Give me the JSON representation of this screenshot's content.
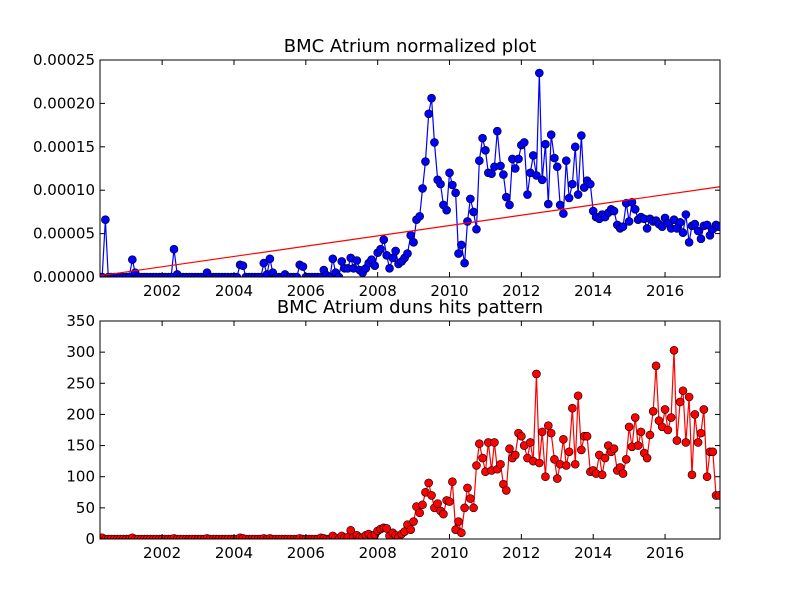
{
  "chart_data": [
    {
      "type": "line",
      "title": "BMC Atrium normalized plot",
      "x": [
        2000.33,
        2000.42,
        2000.5,
        2000.58,
        2000.67,
        2000.75,
        2000.83,
        2000.92,
        2001.0,
        2001.08,
        2001.17,
        2001.25,
        2001.33,
        2001.42,
        2001.5,
        2001.58,
        2001.67,
        2001.75,
        2001.83,
        2001.92,
        2002.0,
        2002.08,
        2002.17,
        2002.25,
        2002.33,
        2002.42,
        2002.5,
        2002.58,
        2002.67,
        2002.75,
        2002.83,
        2002.92,
        2003.0,
        2003.08,
        2003.17,
        2003.25,
        2003.33,
        2003.42,
        2003.5,
        2003.58,
        2003.67,
        2003.75,
        2003.83,
        2003.92,
        2004.0,
        2004.08,
        2004.17,
        2004.25,
        2004.33,
        2004.42,
        2004.5,
        2004.58,
        2004.67,
        2004.75,
        2004.83,
        2004.92,
        2005.0,
        2005.08,
        2005.17,
        2005.25,
        2005.33,
        2005.42,
        2005.5,
        2005.58,
        2005.67,
        2005.75,
        2005.83,
        2005.92,
        2006.0,
        2006.08,
        2006.17,
        2006.25,
        2006.33,
        2006.42,
        2006.5,
        2006.58,
        2006.67,
        2006.75,
        2006.83,
        2006.92,
        2007.0,
        2007.08,
        2007.17,
        2007.25,
        2007.33,
        2007.42,
        2007.5,
        2007.58,
        2007.67,
        2007.75,
        2007.83,
        2007.92,
        2008.0,
        2008.08,
        2008.17,
        2008.25,
        2008.33,
        2008.42,
        2008.5,
        2008.58,
        2008.67,
        2008.75,
        2008.83,
        2008.92,
        2009.0,
        2009.08,
        2009.17,
        2009.25,
        2009.33,
        2009.42,
        2009.5,
        2009.58,
        2009.67,
        2009.75,
        2009.83,
        2009.92,
        2010.0,
        2010.08,
        2010.17,
        2010.25,
        2010.33,
        2010.42,
        2010.5,
        2010.58,
        2010.67,
        2010.75,
        2010.83,
        2010.92,
        2011.0,
        2011.08,
        2011.17,
        2011.25,
        2011.33,
        2011.42,
        2011.5,
        2011.58,
        2011.67,
        2011.75,
        2011.83,
        2011.92,
        2012.0,
        2012.08,
        2012.17,
        2012.25,
        2012.33,
        2012.42,
        2012.5,
        2012.58,
        2012.67,
        2012.75,
        2012.83,
        2012.92,
        2013.0,
        2013.08,
        2013.17,
        2013.25,
        2013.33,
        2013.42,
        2013.5,
        2013.58,
        2013.67,
        2013.75,
        2013.83,
        2013.92,
        2014.0,
        2014.08,
        2014.17,
        2014.25,
        2014.33,
        2014.42,
        2014.5,
        2014.58,
        2014.67,
        2014.75,
        2014.83,
        2014.92,
        2015.0,
        2015.08,
        2015.17,
        2015.25,
        2015.33,
        2015.42,
        2015.5,
        2015.58,
        2015.67,
        2015.75,
        2015.83,
        2015.92,
        2016.0,
        2016.08,
        2016.17,
        2016.25,
        2016.33,
        2016.42,
        2016.5,
        2016.58,
        2016.67,
        2016.75,
        2016.83,
        2016.92,
        2017.0,
        2017.08,
        2017.17,
        2017.25,
        2017.33,
        2017.42,
        2017.5
      ],
      "series": [
        {
          "color": "#0000ff",
          "marker": true,
          "values": [
            0,
            6.6e-05,
            0,
            0,
            0,
            0,
            0,
            0,
            0,
            0,
            2e-05,
            5e-06,
            0,
            0,
            0,
            0,
            0,
            0,
            0,
            0,
            0,
            0,
            0,
            0,
            3.2e-05,
            3e-06,
            0,
            0,
            0,
            0,
            0,
            0,
            0,
            0,
            0,
            5e-06,
            0,
            0,
            0,
            0,
            0,
            0,
            0,
            0,
            0,
            0,
            1.4e-05,
            1.3e-05,
            0,
            0,
            0,
            0,
            0,
            0,
            1.6e-05,
            3e-06,
            2.1e-05,
            5e-06,
            0,
            0,
            0,
            3e-06,
            0,
            0,
            0,
            0,
            1.4e-05,
            1.2e-05,
            0,
            0,
            0,
            0,
            0,
            0,
            8e-06,
            2e-06,
            0,
            2.1e-05,
            5e-06,
            0,
            1.8e-05,
            1e-05,
            1e-05,
            2.2e-05,
            1e-05,
            1.9e-05,
            8e-06,
            5e-06,
            1e-05,
            1.6e-05,
            2e-05,
            1.3e-05,
            2.8e-05,
            3.2e-05,
            4.3e-05,
            2.5e-05,
            1e-05,
            2.2e-05,
            3e-05,
            1.5e-05,
            1.8e-05,
            2.2e-05,
            2.7e-05,
            4.8e-05,
            4e-05,
            6.6e-05,
            7e-05,
            0.000102,
            0.000133,
            0.000188,
            0.000206,
            0.000155,
            0.000112,
            0.000107,
            8.3e-05,
            7.7e-05,
            0.00012,
            0.000106,
            9.7e-05,
            2.7e-05,
            3.7e-05,
            1.6e-05,
            6.4e-05,
            9e-05,
            7.5e-05,
            5.5e-05,
            0.000134,
            0.00016,
            0.000146,
            0.00012,
            0.000119,
            0.000127,
            0.000168,
            0.000128,
            0.000118,
            9.2e-05,
            8.3e-05,
            0.000136,
            0.000125,
            0.000136,
            0.000152,
            0.000155,
            9.5e-05,
            0.00012,
            0.00014,
            0.000117,
            0.000235,
            0.000112,
            0.000153,
            8.4e-05,
            0.000164,
            0.000137,
            0.000127,
            8.3e-05,
            7.3e-05,
            0.000134,
            9.1e-05,
            0.000107,
            0.00015,
            9.5e-05,
            0.000163,
            0.000103,
            0.000111,
            0.000107,
            7.6e-05,
            6.9e-05,
            6.7e-05,
            7.2e-05,
            6.9e-05,
            7.4e-05,
            7.8e-05,
            7.6e-05,
            6e-05,
            5.6e-05,
            5.8e-05,
            8.5e-05,
            6.4e-05,
            8.6e-05,
            7.8e-05,
            6.6e-05,
            6.9e-05,
            6.7e-05,
            5.6e-05,
            6.7e-05,
            6.4e-05,
            6.5e-05,
            6.1e-05,
            5.8e-05,
            6.8e-05,
            6.2e-05,
            5.6e-05,
            6.6e-05,
            5.6e-05,
            6.3e-05,
            5.1e-05,
            7.2e-05,
            4e-05,
            5.9e-05,
            6.1e-05,
            5.3e-05,
            4.4e-05,
            5.9e-05,
            6e-05,
            4.8e-05,
            5.5e-05,
            6e-05,
            5.8e-05
          ]
        },
        {
          "color": "#ff0000",
          "marker": false,
          "x": [
            2000.27,
            2017.53
          ],
          "values": [
            1.5e-06,
            0.000104
          ]
        }
      ],
      "xlim": [
        2000.27,
        2017.53
      ],
      "xticks": [
        2002,
        2004,
        2006,
        2008,
        2010,
        2012,
        2014,
        2016
      ],
      "ylim": [
        0,
        0.00025
      ],
      "yticks": [
        {
          "value": 0,
          "label": "0.00000"
        },
        {
          "value": 5e-05,
          "label": "0.00005"
        },
        {
          "value": 0.0001,
          "label": "0.00010"
        },
        {
          "value": 0.00015,
          "label": "0.00015"
        },
        {
          "value": 0.0002,
          "label": "0.00020"
        },
        {
          "value": 0.00025,
          "label": "0.00025"
        }
      ],
      "grid": false
    },
    {
      "type": "line",
      "title": "BMC Atrium duns hits pattern",
      "x": [
        2000.33,
        2000.42,
        2000.5,
        2000.58,
        2000.67,
        2000.75,
        2000.83,
        2000.92,
        2001.0,
        2001.08,
        2001.17,
        2001.25,
        2001.33,
        2001.42,
        2001.5,
        2001.58,
        2001.67,
        2001.75,
        2001.83,
        2001.92,
        2002.0,
        2002.08,
        2002.17,
        2002.25,
        2002.33,
        2002.42,
        2002.5,
        2002.58,
        2002.67,
        2002.75,
        2002.83,
        2002.92,
        2003.0,
        2003.08,
        2003.17,
        2003.25,
        2003.33,
        2003.42,
        2003.5,
        2003.58,
        2003.67,
        2003.75,
        2003.83,
        2003.92,
        2004.0,
        2004.08,
        2004.17,
        2004.25,
        2004.33,
        2004.42,
        2004.5,
        2004.58,
        2004.67,
        2004.75,
        2004.83,
        2004.92,
        2005.0,
        2005.08,
        2005.17,
        2005.25,
        2005.33,
        2005.42,
        2005.5,
        2005.58,
        2005.67,
        2005.75,
        2005.83,
        2005.92,
        2006.0,
        2006.08,
        2006.17,
        2006.25,
        2006.33,
        2006.42,
        2006.5,
        2006.58,
        2006.67,
        2006.75,
        2006.83,
        2006.92,
        2007.0,
        2007.08,
        2007.17,
        2007.25,
        2007.33,
        2007.42,
        2007.5,
        2007.58,
        2007.67,
        2007.75,
        2007.83,
        2007.92,
        2008.0,
        2008.08,
        2008.17,
        2008.25,
        2008.33,
        2008.42,
        2008.5,
        2008.58,
        2008.67,
        2008.75,
        2008.83,
        2008.92,
        2009.0,
        2009.08,
        2009.17,
        2009.25,
        2009.33,
        2009.42,
        2009.5,
        2009.58,
        2009.67,
        2009.75,
        2009.83,
        2009.92,
        2010.0,
        2010.08,
        2010.17,
        2010.25,
        2010.33,
        2010.42,
        2010.5,
        2010.58,
        2010.67,
        2010.75,
        2010.83,
        2010.92,
        2011.0,
        2011.08,
        2011.17,
        2011.25,
        2011.33,
        2011.42,
        2011.5,
        2011.58,
        2011.67,
        2011.75,
        2011.83,
        2011.92,
        2012.0,
        2012.08,
        2012.17,
        2012.25,
        2012.33,
        2012.42,
        2012.5,
        2012.58,
        2012.67,
        2012.75,
        2012.83,
        2012.92,
        2013.0,
        2013.08,
        2013.17,
        2013.25,
        2013.33,
        2013.42,
        2013.5,
        2013.58,
        2013.67,
        2013.75,
        2013.83,
        2013.92,
        2014.0,
        2014.08,
        2014.17,
        2014.25,
        2014.33,
        2014.42,
        2014.5,
        2014.58,
        2014.67,
        2014.75,
        2014.83,
        2014.92,
        2015.0,
        2015.08,
        2015.17,
        2015.25,
        2015.33,
        2015.42,
        2015.5,
        2015.58,
        2015.67,
        2015.75,
        2015.83,
        2015.92,
        2016.0,
        2016.08,
        2016.17,
        2016.25,
        2016.33,
        2016.42,
        2016.5,
        2016.58,
        2016.67,
        2016.75,
        2016.83,
        2016.92,
        2017.0,
        2017.08,
        2017.17,
        2017.25,
        2017.33,
        2017.42,
        2017.5
      ],
      "series": [
        {
          "color": "#ff0000",
          "marker": true,
          "values": [
            2,
            0,
            0,
            0,
            0,
            0,
            0,
            0,
            0,
            0,
            2,
            0,
            0,
            0,
            0,
            0,
            0,
            0,
            0,
            0,
            0,
            0,
            0,
            0,
            1,
            0,
            0,
            0,
            0,
            0,
            0,
            0,
            0,
            0,
            0,
            1,
            0,
            0,
            0,
            0,
            0,
            0,
            0,
            0,
            0,
            0,
            2,
            1,
            0,
            0,
            0,
            0,
            0,
            0,
            1,
            0,
            1,
            0,
            0,
            0,
            0,
            0,
            0,
            0,
            0,
            0,
            1,
            0,
            0,
            0,
            0,
            0,
            0,
            2,
            1,
            0,
            0,
            5,
            2,
            0,
            5,
            2,
            3,
            14,
            3,
            6,
            3,
            2,
            6,
            8,
            5,
            7,
            13,
            16,
            18,
            17,
            5,
            10,
            6,
            3,
            8,
            12,
            23,
            15,
            28,
            52,
            42,
            55,
            75,
            90,
            70,
            50,
            57,
            45,
            40,
            62,
            60,
            92,
            15,
            28,
            10,
            50,
            82,
            65,
            50,
            118,
            153,
            130,
            108,
            155,
            110,
            155,
            112,
            120,
            88,
            78,
            145,
            130,
            135,
            170,
            165,
            150,
            130,
            155,
            125,
            265,
            122,
            172,
            100,
            182,
            170,
            128,
            97,
            120,
            160,
            118,
            140,
            210,
            120,
            230,
            143,
            165,
            165,
            108,
            110,
            105,
            135,
            103,
            130,
            150,
            140,
            145,
            110,
            115,
            105,
            128,
            180,
            148,
            195,
            150,
            172,
            138,
            130,
            167,
            205,
            278,
            190,
            180,
            208,
            175,
            195,
            303,
            158,
            220,
            238,
            155,
            228,
            103,
            200,
            155,
            170,
            208,
            100,
            140,
            140,
            70,
            70
          ]
        }
      ],
      "xlim": [
        2000.27,
        2017.53
      ],
      "xticks": [
        2002,
        2004,
        2006,
        2008,
        2010,
        2012,
        2014,
        2016
      ],
      "ylim": [
        0,
        350
      ],
      "yticks": [
        0,
        50,
        100,
        150,
        200,
        250,
        300,
        350
      ],
      "grid": false
    }
  ]
}
